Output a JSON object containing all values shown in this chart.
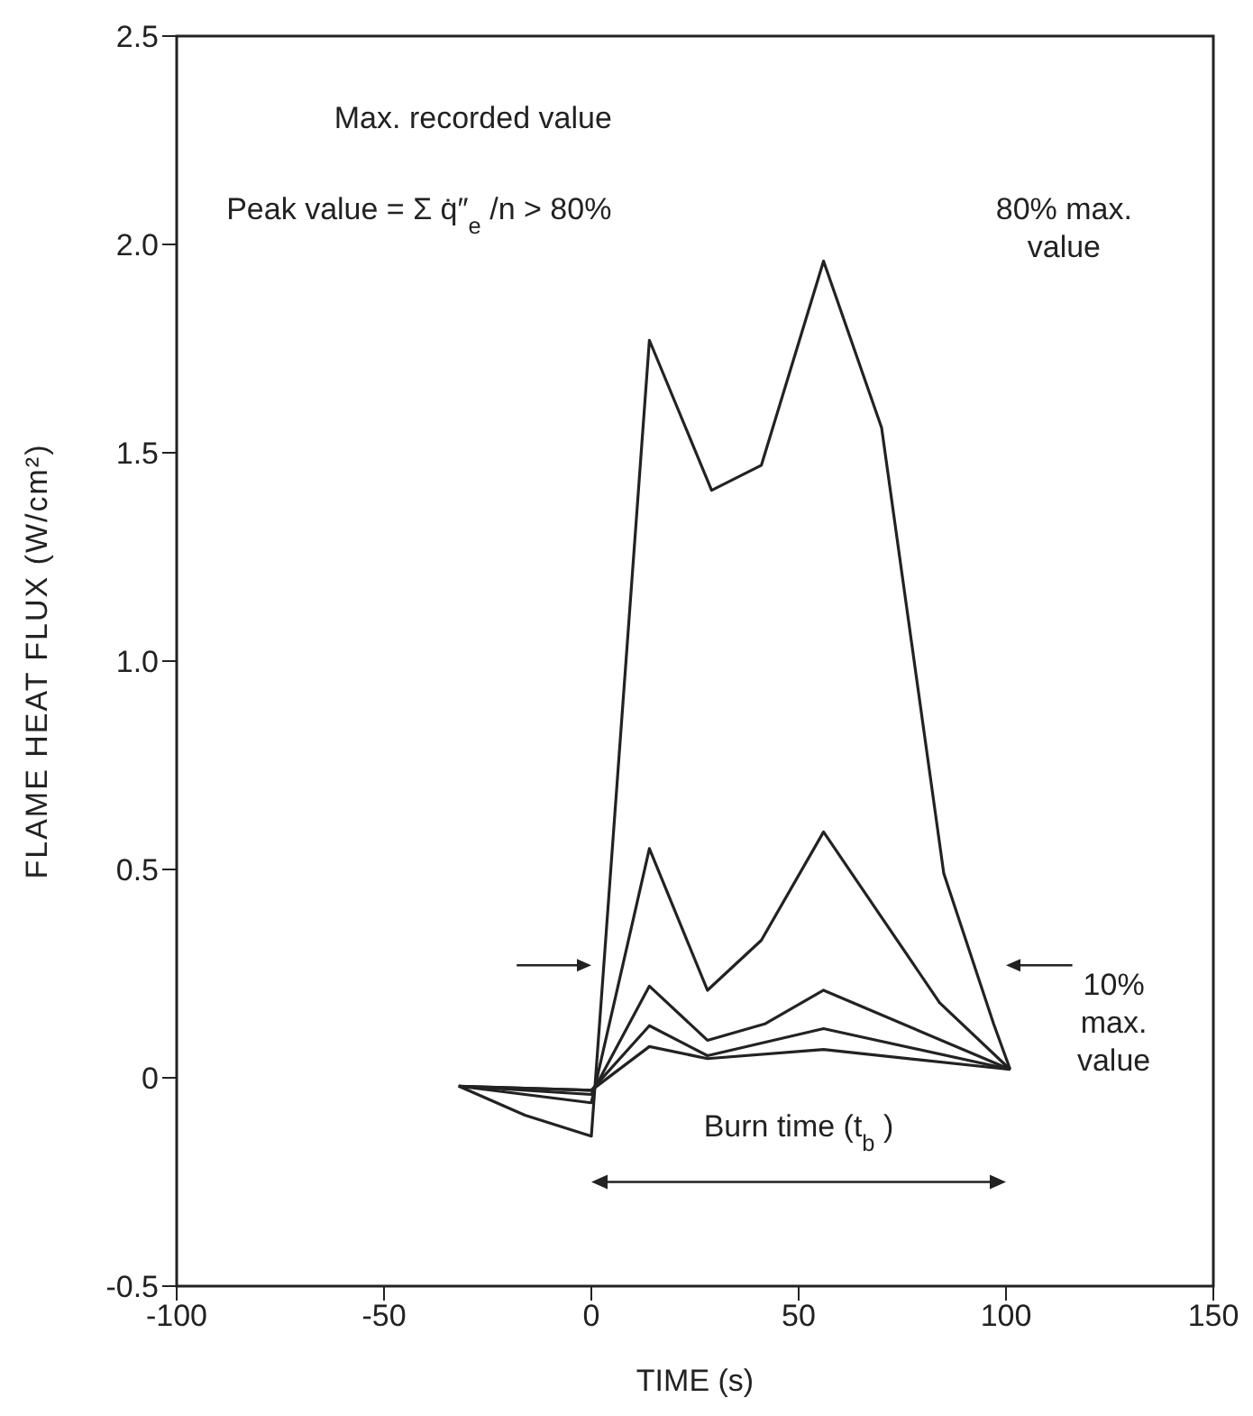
{
  "chart_data": {
    "type": "line",
    "xlabel": "TIME (s)",
    "ylabel": "FLAME HEAT FLUX (W/cm²)",
    "xlim": [
      -100,
      150
    ],
    "xticks": [
      -100,
      -50,
      0,
      50,
      100,
      150
    ],
    "ylim": [
      -0.5,
      2.5
    ],
    "yticks": [
      {
        "value": -0.5,
        "label": "-0.5"
      },
      0,
      {
        "value": 0.5,
        "label": "0.5"
      },
      {
        "value": 1,
        "label": "1.0"
      },
      {
        "value": 1.5,
        "label": "1.5"
      },
      {
        "value": 2,
        "label": "2.0"
      },
      {
        "value": 2.5,
        "label": "2.5"
      }
    ],
    "marker": "none",
    "line_style": "solid",
    "series": [
      {
        "color": "#222222",
        "x": [
          -32,
          -16,
          0,
          14,
          29,
          41,
          56,
          70,
          85,
          97,
          101
        ],
        "values": [
          -0.02,
          -0.09,
          -0.14,
          1.77,
          1.41,
          1.47,
          1.96,
          1.56,
          0.49,
          0.13,
          0.02
        ]
      },
      {
        "color": "#222222",
        "x": [
          -32,
          0,
          14,
          28,
          41,
          56,
          84,
          101
        ],
        "values": [
          -0.02,
          -0.06,
          0.55,
          0.21,
          0.33,
          0.59,
          0.18,
          0.02
        ]
      },
      {
        "color": "#222222",
        "x": [
          -32,
          0,
          14,
          28,
          42,
          56,
          101
        ],
        "values": [
          -0.02,
          -0.04,
          0.22,
          0.09,
          0.13,
          0.21,
          0.02
        ]
      },
      {
        "color": "#222222",
        "x": [
          -32,
          0,
          14,
          28,
          56,
          101
        ],
        "values": [
          -0.02,
          -0.03,
          0.125,
          0.053,
          0.118,
          0.02
        ]
      },
      {
        "color": "#222222",
        "x": [
          -32,
          0,
          14,
          28,
          56,
          101
        ],
        "values": [
          -0.02,
          -0.03,
          0.075,
          0.046,
          0.068,
          0.02
        ]
      }
    ],
    "annotations": [
      "Max. recorded value",
      "Peak value = Σ q̇″$_{e}$/n > 80%",
      "80% max. value",
      "10% max. value",
      "Burn time (t$_{b}$)"
    ]
  }
}
